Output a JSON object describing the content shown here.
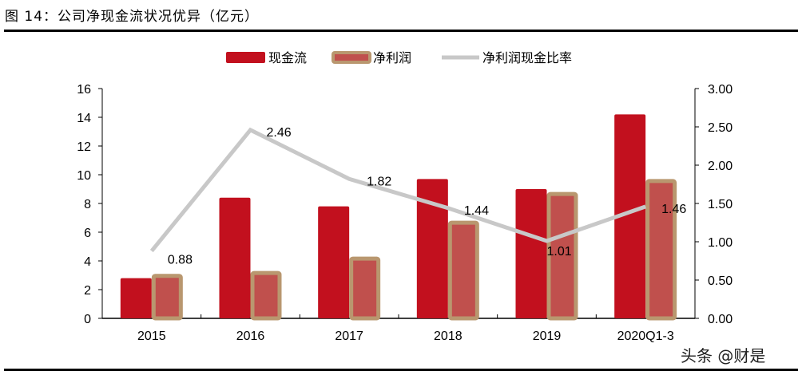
{
  "title": "图 14：公司净现金流状况优异（亿元）",
  "watermark": "头条 @财是",
  "chart_data": {
    "type": "bar",
    "categories": [
      "2015",
      "2016",
      "2017",
      "2018",
      "2019",
      "2020Q1-3"
    ],
    "series": [
      {
        "name": "现金流",
        "kind": "bar",
        "axis": "left",
        "color": "#C2101E",
        "values": [
          2.8,
          8.4,
          7.8,
          9.7,
          9.0,
          14.2
        ]
      },
      {
        "name": "净利润",
        "kind": "bar",
        "axis": "left",
        "color": "#C0504D",
        "border": "#B9976F",
        "values": [
          3.1,
          3.3,
          4.3,
          6.8,
          8.8,
          9.7
        ]
      },
      {
        "name": "净利润现金比率",
        "kind": "line",
        "axis": "right",
        "color": "#C8C8C8",
        "values": [
          0.88,
          2.46,
          1.82,
          1.44,
          1.01,
          1.46
        ],
        "labels": [
          "0.88",
          "2.46",
          "1.82",
          "1.44",
          "1.01",
          "1.46"
        ]
      }
    ],
    "left_axis": {
      "min": 0,
      "max": 16,
      "step": 2,
      "ticks": [
        "0",
        "2",
        "4",
        "6",
        "8",
        "10",
        "12",
        "14",
        "16"
      ]
    },
    "right_axis": {
      "min": 0,
      "max": 3,
      "step": 0.5,
      "ticks": [
        "0.00",
        "0.50",
        "1.00",
        "1.50",
        "2.00",
        "2.50",
        "3.00"
      ]
    },
    "legend": "top",
    "grid": false
  }
}
